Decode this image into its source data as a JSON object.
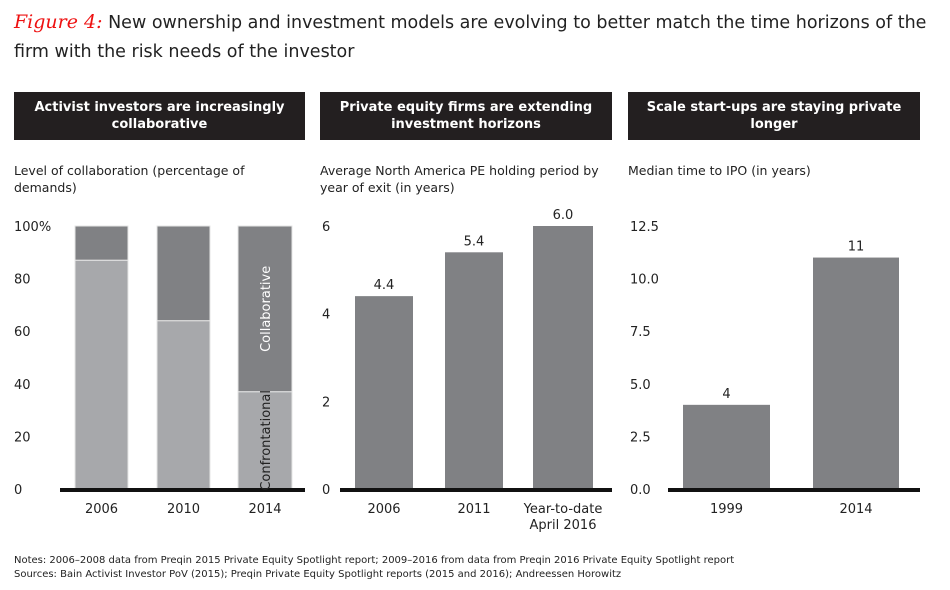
{
  "title": {
    "figure_label": "Figure 4:",
    "text": "New ownership and investment models are evolving to better match the time horizons of the firm with the risk needs of the investor"
  },
  "chart_data": [
    {
      "type": "bar",
      "stacked": true,
      "header": "Activist investors are increasingly collaborative",
      "subtitle": "Level of collaboration (percentage of demands)",
      "categories": [
        "2006",
        "2010",
        "2014"
      ],
      "series": [
        {
          "name": "Confrontational",
          "values": [
            87,
            64,
            37
          ],
          "color": "#a7a8ab"
        },
        {
          "name": "Collaborative",
          "values": [
            13,
            36,
            63
          ],
          "color": "#808184"
        }
      ],
      "ylim": [
        0,
        100
      ],
      "yticks": [
        "0",
        "20",
        "40",
        "60",
        "80",
        "100%"
      ],
      "grid": false
    },
    {
      "type": "bar",
      "header": "Private equity firms are extending investment horizons",
      "subtitle": "Average North America PE holding period by year of exit (in years)",
      "categories": [
        "2006",
        "2011",
        "Year-to-date April 2016"
      ],
      "values": [
        4.4,
        5.4,
        6.0
      ],
      "labels": [
        "4.4",
        "5.4",
        "6.0"
      ],
      "ylim": [
        0,
        6
      ],
      "yticks": [
        "0",
        "2",
        "4",
        "6"
      ],
      "color": "#808184",
      "grid": false
    },
    {
      "type": "bar",
      "header": "Scale start-ups are staying private longer",
      "subtitle": "Median time to IPO (in years)",
      "categories": [
        "1999",
        "2014"
      ],
      "values": [
        4,
        11
      ],
      "labels": [
        "4",
        "11"
      ],
      "ylim": [
        0,
        12.5
      ],
      "yticks": [
        "0.0",
        "2.5",
        "5.0",
        "7.5",
        "10.0",
        "12.5"
      ],
      "color": "#808184",
      "grid": false
    }
  ],
  "notes": "Notes: 2006–2008 data from Preqin 2015 Private Equity Spotlight report; 2009–2016 from data from Preqin 2016 Private Equity Spotlight report",
  "sources": "Sources: Bain Activist Investor PoV (2015); Preqin Private Equity Spotlight reports (2015 and 2016); Andreessen Horowitz"
}
